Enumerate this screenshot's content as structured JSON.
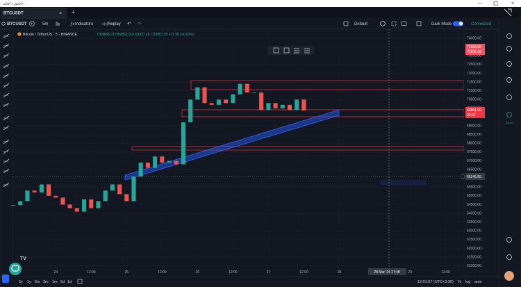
{
  "window": {
    "title": "داشبورد اصلی"
  },
  "tab": {
    "label": "BTCUSDT"
  },
  "toolbar": {
    "symbol": "BTCUSDT",
    "interval": "5m",
    "indicators": "Indicators",
    "replay": "Replay",
    "layout": "Default",
    "dark_mode": "Dark Mode",
    "status": "Connected"
  },
  "legend": {
    "symbol": "Bitcoin / TetherUS · 5 · BINANCE",
    "ohlc": "O69845.01 H69852.00 L69837.46 C69881.99 +11.98 (+0.02%)"
  },
  "chart_data": {
    "type": "candlestick",
    "x": [
      23.4,
      23.5,
      23.6,
      23.7,
      23.8,
      23.9,
      24.0,
      24.1,
      24.2,
      24.3,
      24.4,
      24.5,
      24.6,
      24.7,
      24.8,
      24.9,
      25.0,
      25.1,
      25.2,
      25.3,
      25.4,
      25.5,
      25.6,
      25.7,
      25.8,
      25.9,
      26.0,
      26.1,
      26.2,
      26.3,
      26.4,
      26.5,
      26.6,
      26.7,
      26.8,
      26.9,
      27.0,
      27.1,
      27.2,
      27.3,
      27.4,
      27.5
    ],
    "values": [
      64470,
      64700,
      65300,
      65200,
      65650,
      65000,
      64900,
      64500,
      64300,
      64100,
      64800,
      64300,
      64700,
      65300,
      65650,
      65100,
      64700,
      66100,
      66900,
      66600,
      67250,
      66900,
      67000,
      66800,
      69200,
      70500,
      71200,
      70300,
      70200,
      70500,
      70300,
      70800,
      71400,
      70900,
      70900,
      69900,
      70300,
      70000,
      70200,
      69900,
      70500,
      69880
    ],
    "up_color": "#26a69a",
    "down_color": "#ef5350",
    "xlim": [
      23.39,
      29.76
    ],
    "xticks": [
      {
        "value": 24,
        "label": "24"
      },
      {
        "value": 24.5,
        "label": "12:00"
      },
      {
        "value": 25,
        "label": "25"
      },
      {
        "value": 25.5,
        "label": "12:00"
      },
      {
        "value": 26,
        "label": "26"
      },
      {
        "value": 26.5,
        "label": "12:00"
      },
      {
        "value": 27,
        "label": "27"
      },
      {
        "value": 27.5,
        "label": "12:00"
      },
      {
        "value": 28,
        "label": "28"
      },
      {
        "value": 29,
        "label": "29"
      },
      {
        "value": 29.5,
        "label": "12:00"
      }
    ],
    "ylim": [
      60390,
      74520
    ],
    "yticks": [
      {
        "value": 74000,
        "label": "74000.00"
      },
      {
        "value": 73500,
        "label": "73500.00"
      },
      {
        "value": 73000,
        "label": "73000.00"
      },
      {
        "value": 72500,
        "label": "72500.00"
      },
      {
        "value": 72000,
        "label": "72000.00"
      },
      {
        "value": 71500,
        "label": "71500.00"
      },
      {
        "value": 71000,
        "label": "71000.00"
      },
      {
        "value": 70500,
        "label": "70500.00"
      },
      {
        "value": 70000,
        "label": "70000.00"
      },
      {
        "value": 69500,
        "label": "69500.00"
      },
      {
        "value": 69000,
        "label": "69000.00"
      },
      {
        "value": 68500,
        "label": "68500.00"
      },
      {
        "value": 68000,
        "label": "68000.00"
      },
      {
        "value": 67500,
        "label": "67500.00"
      },
      {
        "value": 67000,
        "label": "67000.00"
      },
      {
        "value": 66500,
        "label": "66500.00"
      },
      {
        "value": 66000,
        "label": "66000.00"
      },
      {
        "value": 65500,
        "label": "65500.00"
      },
      {
        "value": 65000,
        "label": "65000.00"
      },
      {
        "value": 64500,
        "label": "64500.00"
      },
      {
        "value": 64000,
        "label": "64000.00"
      },
      {
        "value": 63500,
        "label": "63500.00"
      },
      {
        "value": 63000,
        "label": "63000.00"
      },
      {
        "value": 62500,
        "label": "62500.00"
      },
      {
        "value": 62000,
        "label": "62000.00"
      },
      {
        "value": 61500,
        "label": "61500.00"
      },
      {
        "value": 61000,
        "label": "61000.00"
      }
    ],
    "grid": true
  },
  "price_labels": {
    "alert": [
      "73155.36",
      "73155.36"
    ],
    "current": {
      "price": "69881.99",
      "countdown": "03:02"
    },
    "crosshair": "66145.95"
  },
  "crosshair": {
    "label": "28 Mar '24  17:48"
  },
  "bottom_bar": {
    "ranges": [
      "5y",
      "1y",
      "6m",
      "3m",
      "1m",
      "5d",
      "1d"
    ],
    "clock": "12:01:57 (UTC+3:30)",
    "percent": "%",
    "log": "log",
    "auto": "auto"
  },
  "sidebar": {
    "assistant": "دستیار"
  }
}
